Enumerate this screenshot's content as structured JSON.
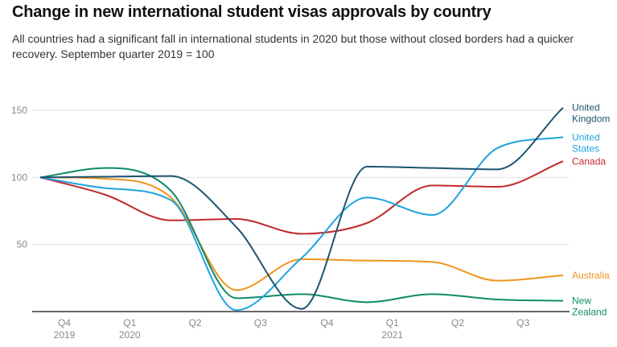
{
  "title": "Change in new international student visas approvals by country",
  "subtitle": "All countries had a significant fall in international students in 2020 but those without closed borders had a quicker recovery. September quarter 2019 = 100",
  "chart_data": {
    "type": "line",
    "title": "Change in new international student visas approvals by country",
    "xlabel": "",
    "ylabel": "",
    "ylim": [
      0,
      150
    ],
    "yticks": [
      50,
      100,
      150
    ],
    "grid": true,
    "legend": "right, labels at line ends",
    "x_ticks": [
      {
        "line1": "Q4",
        "line2": "2019"
      },
      {
        "line1": "Q1",
        "line2": "2020"
      },
      {
        "line1": "Q2",
        "line2": ""
      },
      {
        "line1": "Q3",
        "line2": ""
      },
      {
        "line1": "Q4",
        "line2": ""
      },
      {
        "line1": "Q1",
        "line2": "2021"
      },
      {
        "line1": "Q2",
        "line2": ""
      },
      {
        "line1": "Q3",
        "line2": ""
      }
    ],
    "x": [
      0,
      1,
      2,
      3,
      4,
      5,
      6,
      7,
      8
    ],
    "series": [
      {
        "name": "Canada",
        "label_lines": [
          "Canada"
        ],
        "color": "#c0282d",
        "values": [
          100,
          87,
          68,
          69,
          58,
          66,
          94,
          93,
          112
        ]
      },
      {
        "name": "Australia",
        "label_lines": [
          "Australia"
        ],
        "color": "#f0951d",
        "values": [
          100,
          99,
          85,
          16,
          39,
          38,
          37,
          23,
          27
        ]
      },
      {
        "name": "New Zealand",
        "label_lines": [
          "New",
          "Zealand"
        ],
        "color": "#0f8a6a",
        "values": [
          100,
          107,
          90,
          10,
          13,
          7,
          13,
          9,
          8
        ]
      },
      {
        "name": "United States",
        "label_lines": [
          "United",
          "States"
        ],
        "color": "#1fa3dc",
        "values": [
          100,
          92,
          83,
          1,
          40,
          85,
          72,
          122,
          130
        ]
      },
      {
        "name": "United Kingdom",
        "label_lines": [
          "United",
          "Kingdom"
        ],
        "color": "#1d5570",
        "values": [
          100,
          100.5,
          101,
          63,
          2,
          108,
          107,
          106,
          152
        ]
      }
    ]
  }
}
